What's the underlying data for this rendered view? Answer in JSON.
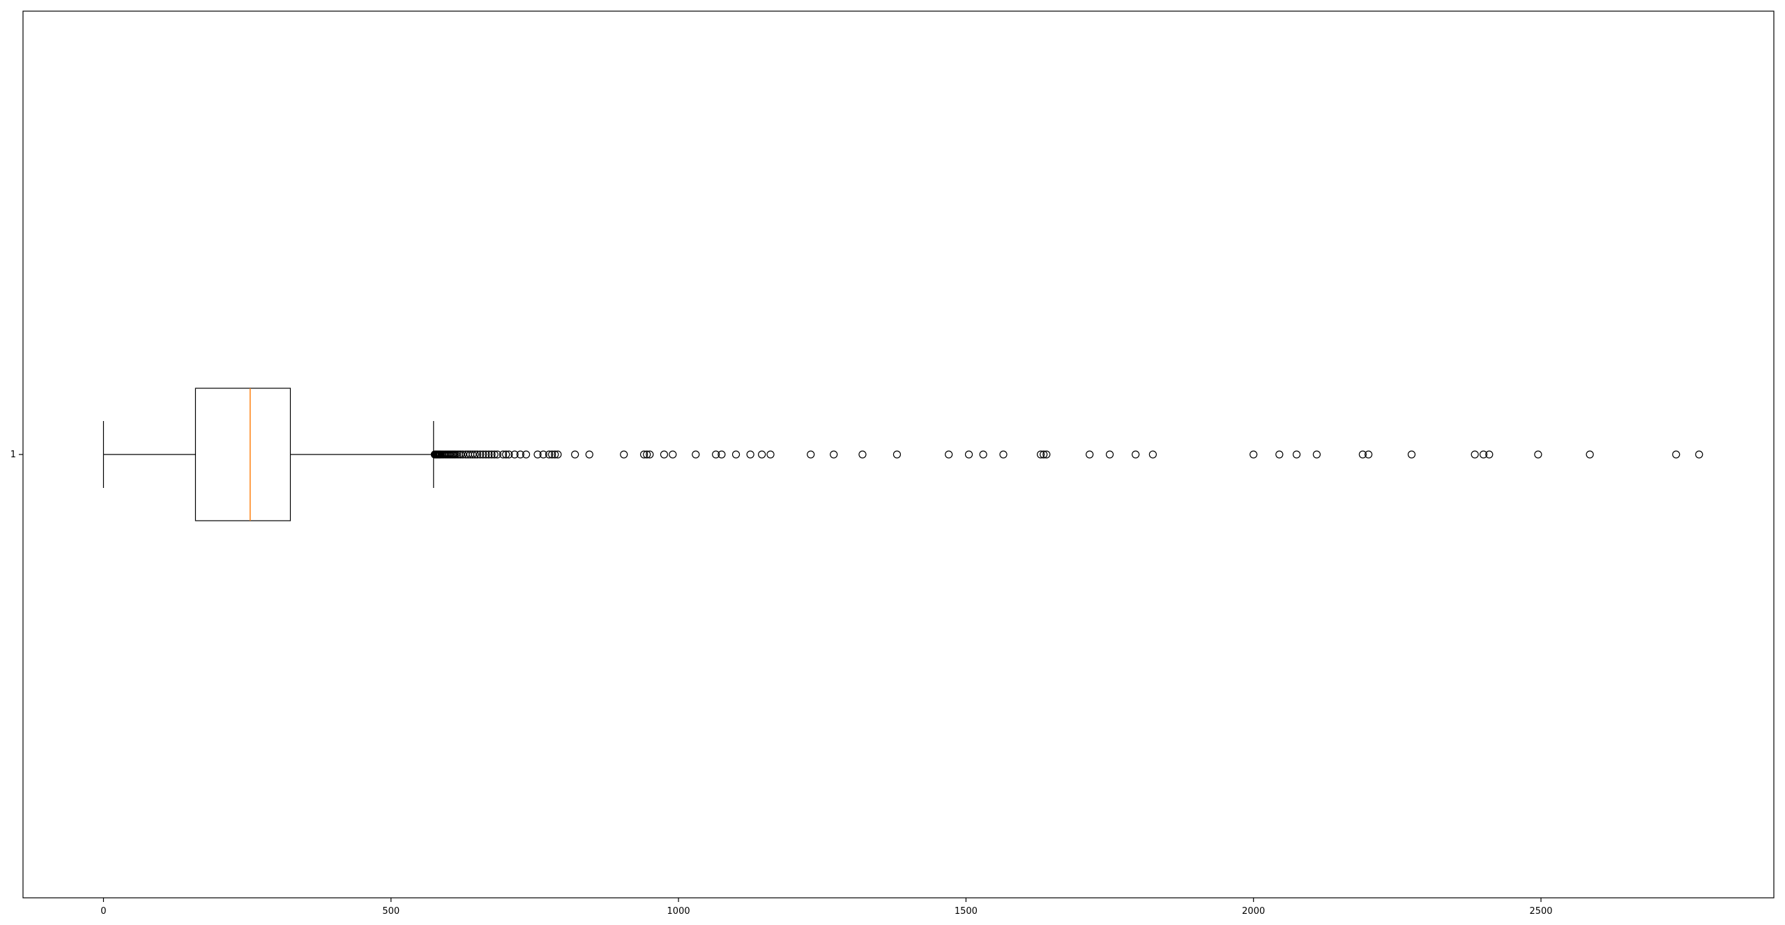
{
  "chart_data": {
    "type": "boxplot",
    "orientation": "horizontal",
    "title": "",
    "xlabel": "",
    "ylabel": "",
    "xlim": [
      -140,
      2905
    ],
    "x_ticks": [
      0,
      500,
      1000,
      1500,
      2000,
      2500
    ],
    "y_ticks": [
      "1"
    ],
    "grid": false,
    "series": [
      {
        "label": "1",
        "whisker_low": 0,
        "q1": 160,
        "median": 255,
        "q3": 325,
        "whisker_high": 574,
        "outliers": [
          576,
          577,
          578,
          579,
          580,
          581,
          582,
          583,
          584,
          585,
          586,
          588,
          590,
          592,
          594,
          596,
          598,
          600,
          602,
          604,
          606,
          608,
          610,
          612,
          615,
          618,
          621,
          625,
          630,
          634,
          638,
          642,
          646,
          650,
          655,
          660,
          665,
          670,
          675,
          680,
          685,
          695,
          700,
          705,
          715,
          725,
          735,
          755,
          765,
          775,
          780,
          785,
          790,
          820,
          845,
          905,
          940,
          945,
          950,
          975,
          990,
          1030,
          1065,
          1075,
          1100,
          1125,
          1145,
          1160,
          1230,
          1270,
          1320,
          1380,
          1470,
          1505,
          1530,
          1565,
          1630,
          1635,
          1640,
          1715,
          1750,
          1795,
          1825,
          2000,
          2045,
          2075,
          2110,
          2190,
          2200,
          2275,
          2385,
          2400,
          2410,
          2495,
          2585,
          2735,
          2775
        ]
      }
    ],
    "colors": {
      "median": "#ff7f0e",
      "box": "#000000",
      "outlier_edge": "#000000"
    }
  }
}
